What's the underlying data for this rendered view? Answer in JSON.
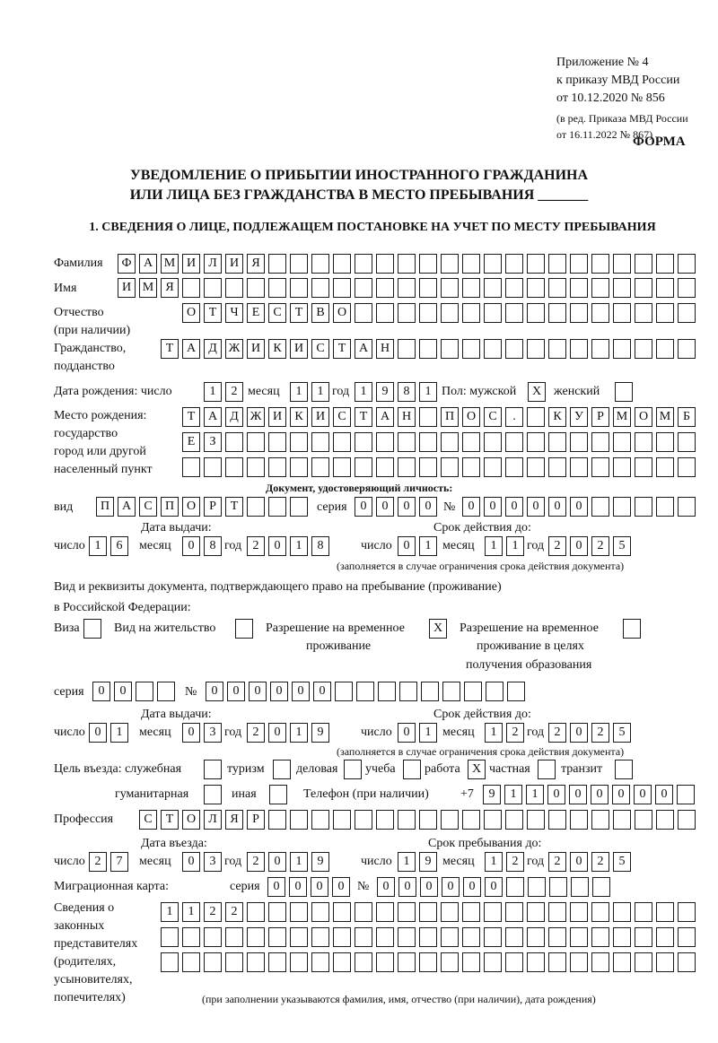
{
  "header": {
    "line1": "Приложение № 4",
    "line2": "к приказу МВД России",
    "line3": "от 10.12.2020 № 856",
    "line4": "(в ред. Приказа МВД России",
    "line5": "от 16.11.2022 № 867)",
    "form_label": "ФОРМА"
  },
  "title": {
    "line1": "УВЕДОМЛЕНИЕ О ПРИБЫТИИ ИНОСТРАННОГО ГРАЖДАНИНА",
    "line2": "ИЛИ ЛИЦА БЕЗ ГРАЖДАНСТВА В МЕСТО ПРЕБЫВАНИЯ _______"
  },
  "section1": "1. СВЕДЕНИЯ О ЛИЦЕ, ПОДЛЕЖАЩЕМ ПОСТАНОВКЕ НА УЧЕТ ПО МЕСТУ ПРЕБЫВАНИЯ",
  "labels": {
    "surname": "Фамилия",
    "name": "Имя",
    "patronymic1": "Отчество",
    "patronymic2": "(при наличии)",
    "citizenship1": "Гражданство,",
    "citizenship2": "подданство",
    "birth_date": "Дата рождения:  число",
    "month": "месяц",
    "year": "год",
    "day": "число",
    "sex_male": "Пол: мужской",
    "sex_female": "женский",
    "birthplace1": "Место рождения:",
    "birthplace2": "государство",
    "birthplace3": "город или другой",
    "birthplace4": "населенный пункт",
    "id_doc": "Документ, удостоверяющий личность:",
    "kind": "вид",
    "series": "серия",
    "number": "№",
    "issue_date": "Дата выдачи:",
    "valid_until": "Срок действия до:",
    "validity_note": "(заполняется в случае ограничения срока действия документа)",
    "stay_doc1": "Вид и реквизиты документа, подтверждающего право на пребывание (проживание)",
    "stay_doc2": "в Российской Федерации:",
    "visa": "Виза",
    "residence": "Вид на жительство",
    "trp1": "Разрешение на временное",
    "trp2": "проживание",
    "trp_edu1": "Разрешение на временное",
    "trp_edu2": "проживание в целях",
    "trp_edu3": "получения образования",
    "purpose": "Цель въезда: служебная",
    "tourism": "туризм",
    "business": "деловая",
    "study": "учеба",
    "work": "работа",
    "private": "частная",
    "transit": "транзит",
    "humanitarian": "гуманитарная",
    "other": "иная",
    "phone": "Телефон (при наличии)",
    "phone_prefix": "+7",
    "profession": "Профессия",
    "entry_date": "Дата въезда:",
    "stay_until": "Срок пребывания до:",
    "migration_card": "Миграционная карта:",
    "reps1": "Сведения о",
    "reps2": "законных",
    "reps3": "представителях",
    "reps4": "(родителях,",
    "reps5": "усыновителях,",
    "reps6": "попечителях)",
    "reps_note": "(при заполнении указываются фамилия, имя, отчество (при наличии), дата рождения)"
  },
  "fields": {
    "surname": [
      "Ф",
      "А",
      "М",
      "И",
      "Л",
      "И",
      "Я"
    ],
    "name": [
      "И",
      "М",
      "Я"
    ],
    "patronymic": [
      "О",
      "Т",
      "Ч",
      "Е",
      "С",
      "Т",
      "В",
      "О"
    ],
    "citizenship": [
      "Т",
      "А",
      "Д",
      "Ж",
      "И",
      "К",
      "И",
      "С",
      "Т",
      "А",
      "Н"
    ],
    "birth_day": [
      "1",
      "2"
    ],
    "birth_month": [
      "1",
      "1"
    ],
    "birth_year": [
      "1",
      "9",
      "8",
      "1"
    ],
    "sex_male": [
      "X"
    ],
    "sex_female": [
      ""
    ],
    "birthplace_row1": [
      "Т",
      "А",
      "Д",
      "Ж",
      "И",
      "К",
      "И",
      "С",
      "Т",
      "А",
      "Н",
      "",
      "П",
      "О",
      "С",
      ".",
      "",
      "К",
      "У",
      "Р",
      "М",
      "О",
      "М",
      "Б"
    ],
    "birthplace_row2": [
      "Е",
      "З"
    ],
    "birthplace_row3": [],
    "id_kind": [
      "П",
      "А",
      "С",
      "П",
      "О",
      "Р",
      "Т"
    ],
    "id_series": [
      "0",
      "0",
      "0",
      "0"
    ],
    "id_number": [
      "0",
      "0",
      "0",
      "0",
      "0",
      "0"
    ],
    "id_issue_day": [
      "1",
      "6"
    ],
    "id_issue_month": [
      "0",
      "8"
    ],
    "id_issue_year": [
      "2",
      "0",
      "1",
      "8"
    ],
    "id_valid_day": [
      "0",
      "1"
    ],
    "id_valid_month": [
      "1",
      "1"
    ],
    "id_valid_year": [
      "2",
      "0",
      "2",
      "5"
    ],
    "doc_visa": [
      ""
    ],
    "doc_residence": [
      ""
    ],
    "doc_trp": [
      "X"
    ],
    "doc_trp_edu": [
      ""
    ],
    "stay_series": [
      "0",
      "0"
    ],
    "stay_number": [
      "0",
      "0",
      "0",
      "0",
      "0",
      "0"
    ],
    "stay_issue_day": [
      "0",
      "1"
    ],
    "stay_issue_month": [
      "0",
      "3"
    ],
    "stay_issue_year": [
      "2",
      "0",
      "1",
      "9"
    ],
    "stay_valid_day": [
      "0",
      "1"
    ],
    "stay_valid_month": [
      "1",
      "2"
    ],
    "stay_valid_year": [
      "2",
      "0",
      "2",
      "5"
    ],
    "purpose_official": [
      ""
    ],
    "purpose_tourism": [
      ""
    ],
    "purpose_business": [
      ""
    ],
    "purpose_study": [
      ""
    ],
    "purpose_work": [
      "X"
    ],
    "purpose_private": [
      ""
    ],
    "purpose_transit": [
      ""
    ],
    "purpose_humanitarian": [
      ""
    ],
    "purpose_other": [
      ""
    ],
    "phone": [
      "9",
      "1",
      "1",
      "0",
      "0",
      "0",
      "0",
      "0",
      "0"
    ],
    "profession": [
      "С",
      "Т",
      "О",
      "Л",
      "Я",
      "Р"
    ],
    "entry_day": [
      "2",
      "7"
    ],
    "entry_month": [
      "0",
      "3"
    ],
    "entry_year": [
      "2",
      "0",
      "1",
      "9"
    ],
    "stay_until_day": [
      "1",
      "9"
    ],
    "stay_until_month": [
      "1",
      "2"
    ],
    "stay_until_year": [
      "2",
      "0",
      "2",
      "5"
    ],
    "mc_series": [
      "0",
      "0",
      "0",
      "0"
    ],
    "mc_number": [
      "0",
      "0",
      "0",
      "0",
      "0",
      "0"
    ],
    "reps_row1": [
      "1",
      "1",
      "2",
      "2"
    ],
    "reps_row2": [],
    "reps_row3": []
  }
}
